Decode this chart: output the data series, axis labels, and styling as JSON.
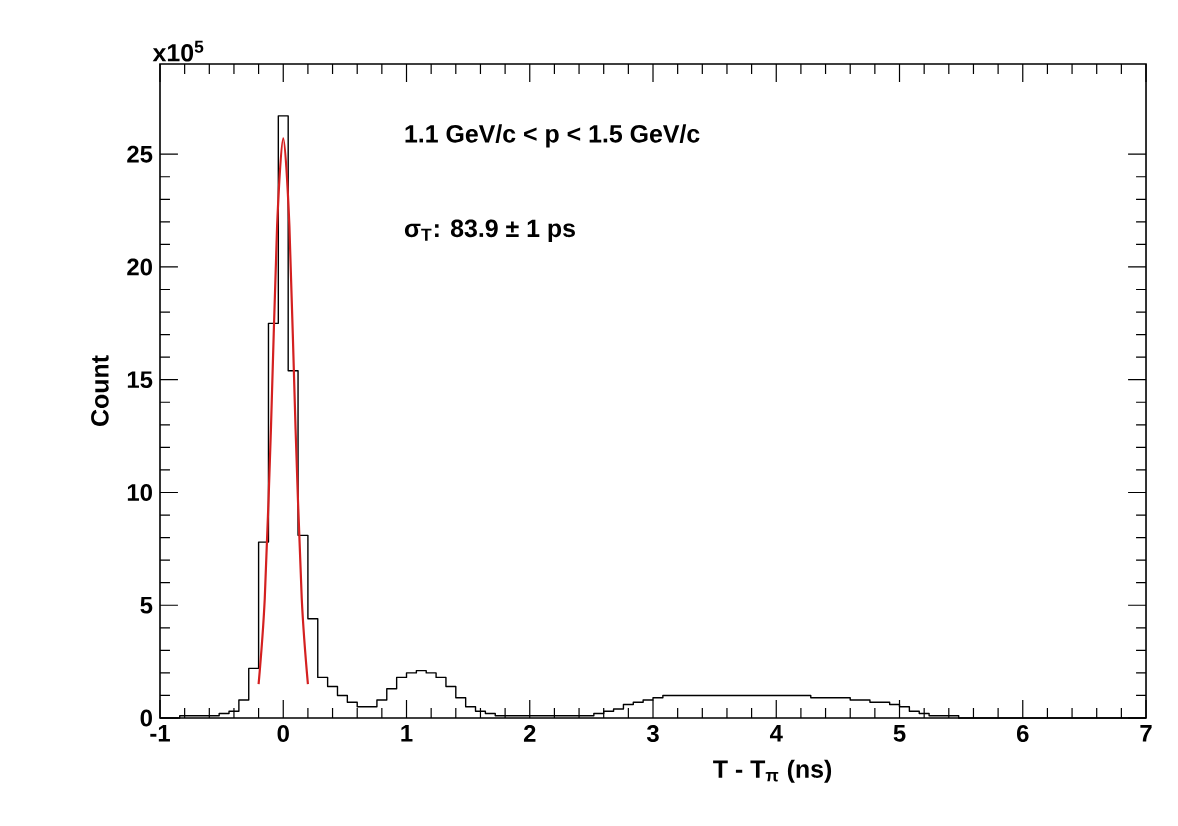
{
  "chart_data": {
    "type": "histogram",
    "xlabel": "T - T$_{π}$ (ns)",
    "ylabel": "Count",
    "annotations": [
      "1.1 GeV/c < p < 1.5 GeV/c",
      "σ$_{T}$: 83.9 ± 1 ps",
      "x10$^{5}$"
    ],
    "bins": [
      -1,
      -0.92,
      -0.84,
      -0.76,
      -0.68,
      -0.6,
      -0.52,
      -0.44,
      -0.36,
      -0.28,
      -0.2,
      -0.12,
      -0.04,
      0.04,
      0.12,
      0.2,
      0.28,
      0.36,
      0.44,
      0.52,
      0.6,
      0.68,
      0.76,
      0.84,
      0.92,
      1,
      1.08,
      1.16,
      1.24,
      1.32,
      1.4,
      1.48,
      1.56,
      1.64,
      1.72,
      1.8,
      1.88,
      1.96,
      2.04,
      2.12,
      2.2,
      2.28,
      2.36,
      2.44,
      2.52,
      2.6,
      2.68,
      2.76,
      2.84,
      2.92,
      3,
      3.08,
      3.16,
      3.24,
      3.32,
      3.4,
      3.48,
      3.56,
      3.64,
      3.72,
      3.8,
      3.88,
      3.96,
      4.04,
      4.12,
      4.2,
      4.28,
      4.36,
      4.44,
      4.52,
      4.6,
      4.68,
      4.76,
      4.84,
      4.92,
      5,
      5.08,
      5.16,
      5.24,
      5.32,
      5.4,
      5.48,
      5.56,
      5.64,
      5.72,
      5.8,
      5.88,
      5.96,
      6.04,
      6.12,
      6.2,
      6.28,
      6.36,
      6.44,
      6.52,
      6.6,
      6.68,
      6.76,
      6.84,
      6.92,
      7
    ],
    "series": [
      {
        "color": "#000000",
        "values": [
          0,
          0,
          0.1,
          0.1,
          0.1,
          0.1,
          0.2,
          0.3,
          0.8,
          2.2,
          7.8,
          17.5,
          26.7,
          15.4,
          8.1,
          4.4,
          1.8,
          1.4,
          1.0,
          0.7,
          0.5,
          0.5,
          0.8,
          1.3,
          1.8,
          2.0,
          2.1,
          2.0,
          1.8,
          1.4,
          0.9,
          0.5,
          0.3,
          0.2,
          0.1,
          0.1,
          0.1,
          0.1,
          0.1,
          0.1,
          0.1,
          0.1,
          0.1,
          0.1,
          0.2,
          0.3,
          0.4,
          0.6,
          0.7,
          0.8,
          0.9,
          1.0,
          1.0,
          1.0,
          1.0,
          1.0,
          1.0,
          1.0,
          1.0,
          1.0,
          1.0,
          1.0,
          1.0,
          1.0,
          1.0,
          1.0,
          0.9,
          0.9,
          0.9,
          0.9,
          0.8,
          0.8,
          0.7,
          0.7,
          0.6,
          0.5,
          0.3,
          0.2,
          0.1,
          0.1,
          0.1,
          0,
          0,
          0,
          0,
          0,
          0,
          0,
          0,
          0,
          0,
          0,
          0,
          0,
          0,
          0,
          0,
          0,
          0,
          0
        ]
      },
      {
        "type": "line",
        "color": "#d42020",
        "x": [
          -0.2,
          -0.15,
          -0.1,
          -0.05,
          0,
          0.05,
          0.1,
          0.15,
          0.2
        ],
        "values": [
          1.5,
          5.3,
          12.8,
          21.8,
          25.7,
          21.8,
          12.8,
          5.3,
          1.5
        ]
      }
    ],
    "xlim": [
      -1,
      7
    ],
    "ylim": [
      0,
      29
    ],
    "xticks": [
      -1,
      0,
      1,
      2,
      3,
      4,
      5,
      6,
      7
    ],
    "yticks": [
      0,
      5,
      10,
      15,
      20,
      25
    ],
    "grid": false
  }
}
